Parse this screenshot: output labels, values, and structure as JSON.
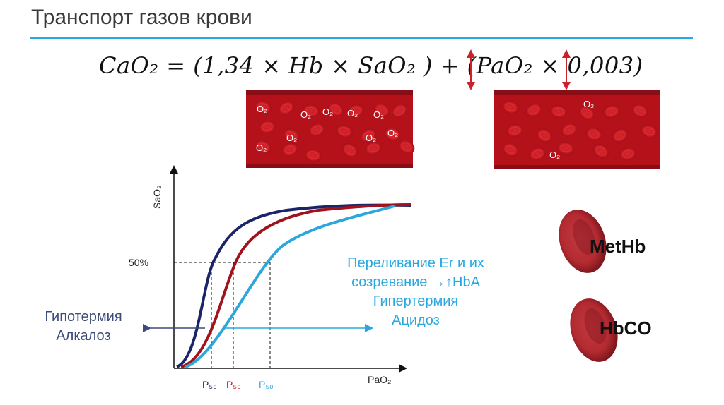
{
  "title": "Транспорт газов крови",
  "formula": "CaO₂ = (1,34 × Hb × SaO₂ ) + (PaO₂ × 0,003)",
  "o2_label": "O₂",
  "graph": {
    "y_axis": "SaO₂",
    "x_axis": "PaO₂",
    "level_50": "50%",
    "p50_label": "P₅₀",
    "curve_colors": {
      "left": "#1b2466",
      "normal": "#a0131c",
      "right": "#2aa8de"
    }
  },
  "shift_left_text": [
    "Гипотермия",
    "Алкалоз"
  ],
  "shift_right_text": [
    "Переливание Er и их",
    "созревание →↑HbA",
    "Гипертермия",
    "Ацидоз"
  ],
  "cells": {
    "methb": "MetHb",
    "hbco": "HbCO"
  },
  "colors": {
    "accent": "#27aae1",
    "vessel": "#b5111b",
    "rbc": "#e8262d",
    "arrow": "#c8232c"
  }
}
